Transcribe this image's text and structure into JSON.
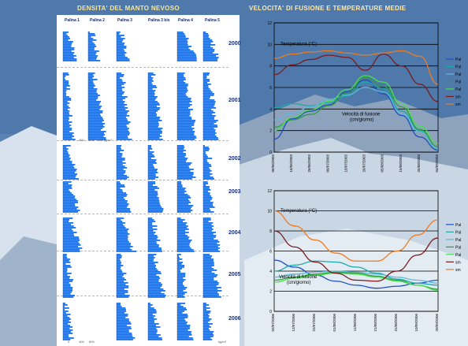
{
  "left_title": "DENSITA' DEL MANTO NEVOSO",
  "right_title": "VELOCITA' DI FUSIONE E TEMPERATURE MEDIE",
  "stations": [
    "Palina 1",
    "Palina 2",
    "Palina 3",
    "Palina 3 bis",
    "Palina 4",
    "Palina 5"
  ],
  "years": [
    "2000",
    "2001",
    "2002",
    "2003",
    "2004",
    "2005",
    "2006"
  ],
  "density_axis_2001": [
    "0",
    "400",
    "800",
    "300 kg/m³"
  ],
  "density_axis_2006": [
    "0",
    "400",
    "800",
    "kg/m³"
  ],
  "chart_data": [
    {
      "type": "line",
      "title": "",
      "ylim": [
        0,
        12
      ],
      "yticks": [
        0,
        2,
        4,
        6,
        8,
        10,
        12
      ],
      "x": [
        "06/06/2003",
        "16/06/2003",
        "26/06/2003",
        "06/07/2003",
        "16/07/2003",
        "26/07/2003",
        "05/08/2003",
        "15/08/2003",
        "25/08/2003",
        "04/09/2003"
      ],
      "annotations": [
        "Temperatura (°C)",
        "Velocità di fusione\n(cm/giorno)"
      ],
      "legend_visible": [
        "Pal",
        "Pal",
        "Pal",
        "Pal",
        "Pal",
        "sm",
        "sm"
      ],
      "series": [
        {
          "color": "#1f4fbf",
          "values": [
            1.2,
            3.1,
            3.8,
            4.4,
            5.6,
            6.7,
            5.4,
            3.4,
            1.4,
            0.2
          ]
        },
        {
          "color": "#1aa9a9",
          "values": [
            4.1,
            4.5,
            4.3,
            4.6,
            5.2,
            6.5,
            5.9,
            3.8,
            2.0,
            0.3
          ]
        },
        {
          "color": "#5fb8d8",
          "values": [
            3.0,
            3.6,
            4.2,
            4.9,
            5.3,
            6.0,
            5.6,
            3.6,
            1.9,
            0.3
          ]
        },
        {
          "color": "#2f9c3c",
          "values": [
            2.3,
            3.0,
            3.5,
            4.3,
            5.5,
            6.9,
            6.1,
            4.2,
            2.1,
            0.5
          ]
        },
        {
          "color": "#47e04a",
          "values": [
            2.0,
            3.2,
            3.9,
            4.7,
            5.8,
            7.1,
            6.5,
            4.5,
            2.4,
            0.8
          ]
        },
        {
          "color": "#7a1a1a",
          "values": [
            7.2,
            8.1,
            8.6,
            9.0,
            8.8,
            7.6,
            9.1,
            8.0,
            6.3,
            4.7
          ]
        },
        {
          "color": "#f07a1c",
          "values": [
            8.7,
            9.1,
            9.3,
            9.4,
            9.2,
            9.0,
            9.2,
            9.4,
            8.9,
            6.3
          ]
        }
      ]
    },
    {
      "type": "line",
      "title": "",
      "ylim": [
        0,
        12
      ],
      "yticks": [
        0,
        2,
        4,
        6,
        8,
        10,
        12
      ],
      "x": [
        "02/07/2006",
        "12/07/2006",
        "22/07/2006",
        "01/08/2006",
        "11/08/2006",
        "21/08/2006",
        "31/08/2006",
        "10/09/2006",
        "20/09/2006"
      ],
      "annotations": [
        "Temperatura (°C)",
        "Velocità di fusione\n(cm/giorno)"
      ],
      "legend_visible": [
        "Pal",
        "Pal",
        "Pal",
        "Pal",
        "Pal",
        "sm",
        "sm"
      ],
      "series": [
        {
          "color": "#1f4fbf",
          "values": [
            5.1,
            4.4,
            3.6,
            3.0,
            2.6,
            2.3,
            2.5,
            2.8,
            3.1
          ]
        },
        {
          "color": "#1aa9a9",
          "values": [
            4.0,
            4.6,
            5.0,
            4.9,
            4.4,
            3.8,
            3.2,
            2.8,
            2.6
          ]
        },
        {
          "color": "#5fb8d8",
          "values": [
            3.4,
            3.7,
            3.9,
            4.0,
            3.9,
            3.7,
            3.4,
            3.1,
            2.8
          ]
        },
        {
          "color": "#2f9c3c",
          "values": [
            3.1,
            3.4,
            3.7,
            3.9,
            3.8,
            3.5,
            3.1,
            2.6,
            2.2
          ]
        },
        {
          "color": "#47e04a",
          "values": [
            2.9,
            3.3,
            3.6,
            3.8,
            3.7,
            3.4,
            3.0,
            2.6,
            2.1
          ]
        },
        {
          "color": "#7a1a1a",
          "values": [
            8.0,
            6.4,
            4.9,
            3.8,
            3.1,
            3.0,
            4.0,
            5.6,
            7.3
          ]
        },
        {
          "color": "#f07a1c",
          "values": [
            10.0,
            8.5,
            7.1,
            5.8,
            5.0,
            5.0,
            6.0,
            7.6,
            9.1
          ]
        }
      ]
    }
  ]
}
